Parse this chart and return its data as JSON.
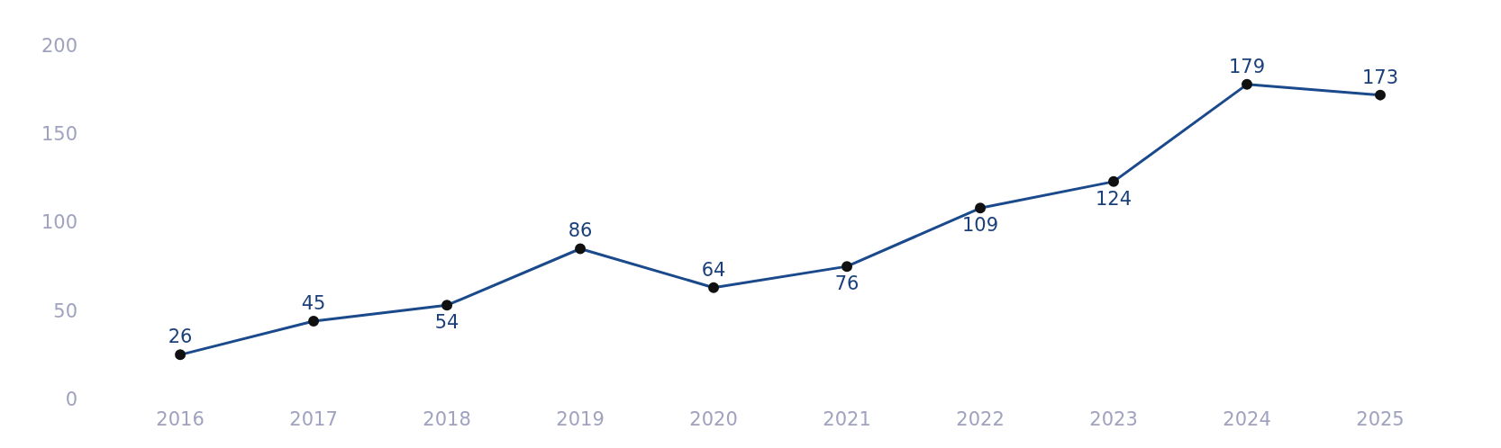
{
  "chart_data": {
    "type": "line",
    "categories": [
      "2016",
      "2017",
      "2018",
      "2019",
      "2020",
      "2021",
      "2022",
      "2023",
      "2024",
      "2025"
    ],
    "series": [
      {
        "color": "#1b4a8c",
        "values": [
          26,
          45,
          54,
          86,
          64,
          76,
          109,
          124,
          179,
          173
        ]
      }
    ],
    "ylim": [
      0,
      200
    ],
    "yticks": [
      0,
      50,
      100,
      150,
      200
    ],
    "grid": false,
    "legend": false,
    "marker": "circle",
    "line_style": "solid",
    "data_labels": true
  }
}
